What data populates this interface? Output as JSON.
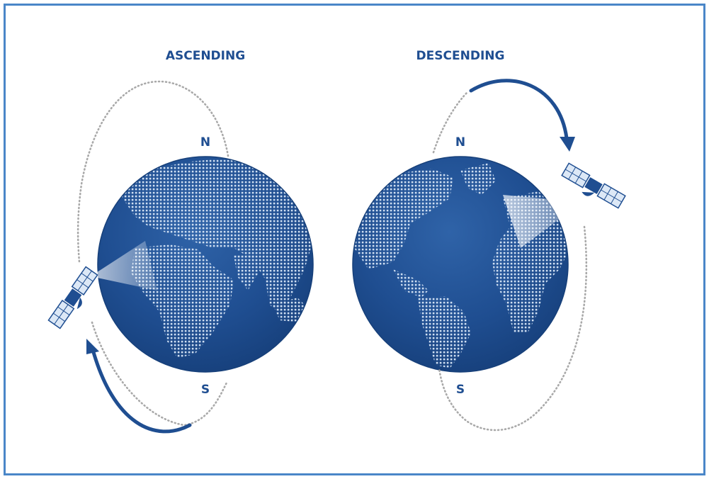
{
  "titles": {
    "ascending": "ASCENDING",
    "descending": "DESCENDING"
  },
  "poles": {
    "north": "N",
    "south": "S"
  },
  "colors": {
    "frame": "#4a86c8",
    "globe_ocean": "#1f4e91",
    "globe_edge": "#17407a",
    "land_dots": "#c9d9ee",
    "title_text": "#1f4e91",
    "orbit": "#a9a9a9",
    "arrow": "#1f4e91",
    "panel": "#dce8f6"
  }
}
